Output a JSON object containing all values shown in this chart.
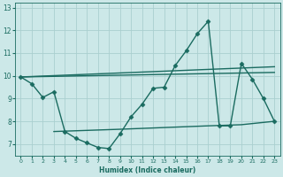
{
  "xlabel": "Humidex (Indice chaleur)",
  "ylabel": "",
  "bg_color": "#cce8e8",
  "grid_color": "#aacfcf",
  "line_color": "#1a6b60",
  "xlim": [
    -0.5,
    23.5
  ],
  "ylim": [
    6.5,
    13.2
  ],
  "xticks": [
    0,
    1,
    2,
    3,
    4,
    5,
    6,
    7,
    8,
    9,
    10,
    11,
    12,
    13,
    14,
    15,
    16,
    17,
    18,
    19,
    20,
    21,
    22,
    23
  ],
  "yticks": [
    7,
    8,
    9,
    10,
    11,
    12,
    13
  ],
  "line1_x": [
    0,
    1,
    2,
    3,
    4,
    5,
    6,
    7,
    8,
    9,
    10,
    11,
    12,
    13,
    14,
    15,
    16,
    17,
    18,
    19,
    20,
    21,
    22,
    23
  ],
  "line1_y": [
    9.95,
    9.65,
    9.05,
    9.3,
    7.55,
    7.25,
    7.05,
    6.85,
    6.8,
    7.45,
    8.2,
    8.75,
    9.45,
    9.5,
    10.45,
    11.1,
    11.85,
    12.4,
    7.8,
    7.8,
    10.55,
    9.85,
    9.0,
    8.0
  ],
  "line2_x": [
    0,
    23
  ],
  "line2_y": [
    9.95,
    10.4
  ],
  "line3_x": [
    0,
    23
  ],
  "line3_y": [
    9.95,
    10.15
  ],
  "line4_x": [
    3,
    9,
    17,
    20,
    23
  ],
  "line4_y": [
    7.55,
    7.65,
    7.8,
    7.85,
    8.0
  ],
  "marker": "D",
  "markersize": 2.5,
  "linewidth": 1.0
}
